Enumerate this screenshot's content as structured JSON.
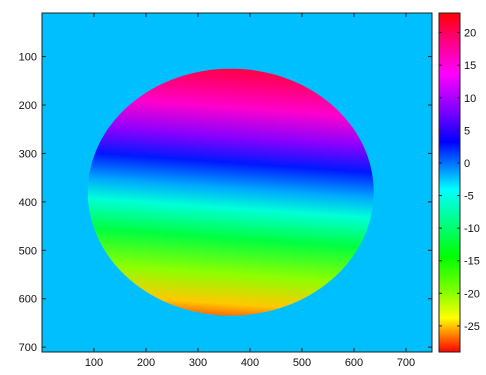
{
  "chart_data": {
    "type": "heatmap",
    "title": "",
    "xlabel": "",
    "ylabel": "",
    "background_value": 0,
    "background_color": "#00BFFF",
    "x_ticks": [
      "100",
      "200",
      "300",
      "400",
      "500",
      "600",
      "700"
    ],
    "y_ticks": [
      "100",
      "200",
      "300",
      "400",
      "500",
      "600",
      "700"
    ],
    "xlim": [
      0,
      750
    ],
    "ylim": [
      710,
      10
    ],
    "grid": false,
    "shape": {
      "type": "disk",
      "center": [
        363,
        380
      ],
      "radius_x": 275,
      "radius_y": 255
    },
    "field": {
      "description_free": true,
      "top_value": 23,
      "bottom_value": -29,
      "tilt": 0.07
    },
    "colorbar": {
      "min": -29,
      "max": 23,
      "ticks": [
        "20",
        "15",
        "10",
        "5",
        "0",
        "-5",
        "-10",
        "-15",
        "-20",
        "-25"
      ],
      "tick_values": [
        20,
        15,
        10,
        5,
        0,
        -5,
        -10,
        -15,
        -20,
        -25
      ],
      "colormap": "hsv"
    }
  }
}
